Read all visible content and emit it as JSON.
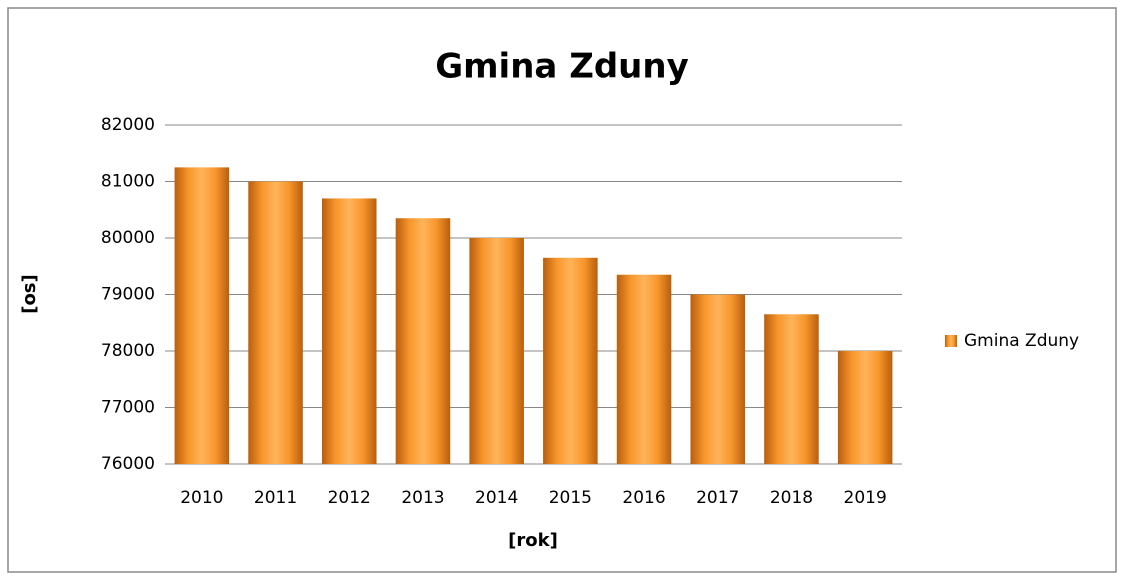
{
  "chart_data": {
    "type": "bar",
    "title": "Gmina Zduny",
    "categories": [
      "2010",
      "2011",
      "2012",
      "2013",
      "2014",
      "2015",
      "2016",
      "2017",
      "2018",
      "2019"
    ],
    "series": [
      {
        "name": "Gmina Zduny",
        "color": "#f7962a",
        "values": [
          81250,
          81000,
          80700,
          80350,
          80000,
          79650,
          79350,
          79000,
          78650,
          78000
        ]
      }
    ],
    "ylim": [
      76000,
      82000
    ],
    "yticks": [
      76000,
      77000,
      78000,
      79000,
      80000,
      81000,
      82000
    ],
    "y_label": "[os]",
    "x_label": "[rok]",
    "grid": true,
    "legend": "right"
  }
}
